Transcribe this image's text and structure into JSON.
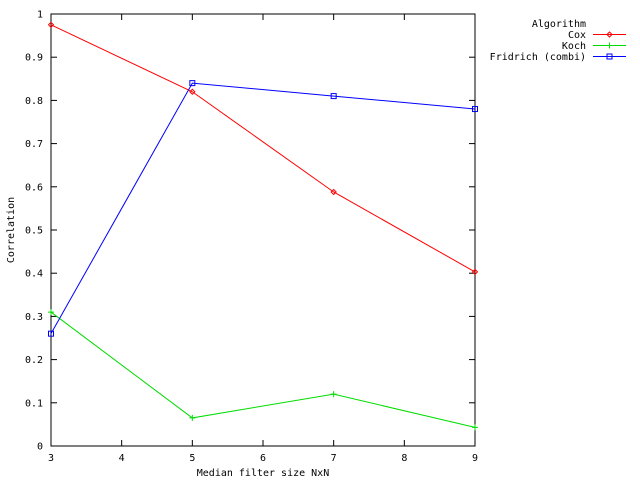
{
  "chart_data": {
    "type": "line",
    "title": "",
    "xlabel": "Median filter size NxN",
    "ylabel": "Correlation",
    "xlim": [
      3,
      9
    ],
    "ylim": [
      0,
      1
    ],
    "xticks": [
      3,
      4,
      5,
      6,
      7,
      8,
      9
    ],
    "yticks": [
      0,
      0.1,
      0.2,
      0.3,
      0.4,
      0.5,
      0.6,
      0.7,
      0.8,
      0.9,
      1
    ],
    "grid": false,
    "legend": {
      "title": "Algorithm",
      "placement": "top-right, outside plot"
    },
    "series": [
      {
        "name": "Cox",
        "color": "#ff0000",
        "marker": "diamond",
        "x": [
          3,
          5,
          7,
          9
        ],
        "y": [
          0.975,
          0.82,
          0.588,
          0.403
        ]
      },
      {
        "name": "Koch",
        "color": "#00dd00",
        "marker": "plus",
        "x": [
          3,
          5,
          7,
          9
        ],
        "y": [
          0.31,
          0.065,
          0.12,
          0.043
        ]
      },
      {
        "name": "Fridrich (combi)",
        "color": "#0000ff",
        "marker": "square",
        "x": [
          3,
          5,
          7,
          9
        ],
        "y": [
          0.26,
          0.84,
          0.81,
          0.78
        ]
      }
    ]
  }
}
